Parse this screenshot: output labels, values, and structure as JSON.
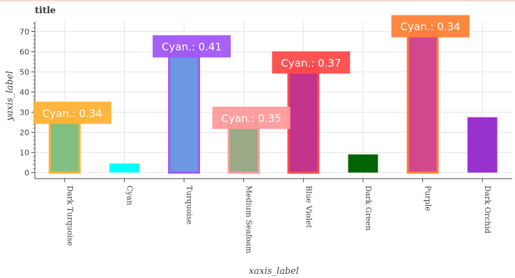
{
  "chart_data": {
    "type": "bar",
    "title": "title",
    "xlabel": "xaxis_label",
    "ylabel": "yaxis_label",
    "ylim": [
      -3,
      75
    ],
    "yticks": [
      0,
      10,
      20,
      30,
      40,
      50,
      60,
      70
    ],
    "grid": true,
    "categories": [
      "Dark Turquoise",
      "Cyan",
      "Turquoise",
      "Medium Seafoam",
      "Blue Violet",
      "Dark Green",
      "Purple",
      "Dark Orchid"
    ],
    "values": [
      29,
      4.5,
      62,
      26.5,
      54,
      9,
      72,
      27.5
    ],
    "bar_colors": [
      "#80c080",
      "#00ffff",
      "#6d96e3",
      "#9aa986",
      "#c4338b",
      "#006400",
      "#d2488e",
      "#9932cc"
    ],
    "annotations": [
      {
        "category": "Dark Turquoise",
        "text": "Cyan.: 0.34",
        "color": "#ffb235"
      },
      {
        "category": "Turquoise",
        "text": "Cyan.: 0.41",
        "color": "#a256f5"
      },
      {
        "category": "Medium Seafoam",
        "text": "Cyan.: 0.35",
        "color": "#ff9a9a"
      },
      {
        "category": "Blue Violet",
        "text": "Cyan.: 0.37",
        "color": "#ff4b4b"
      },
      {
        "category": "Purple",
        "text": "Cyan.: 0.34",
        "color": "#ff8236"
      }
    ]
  }
}
